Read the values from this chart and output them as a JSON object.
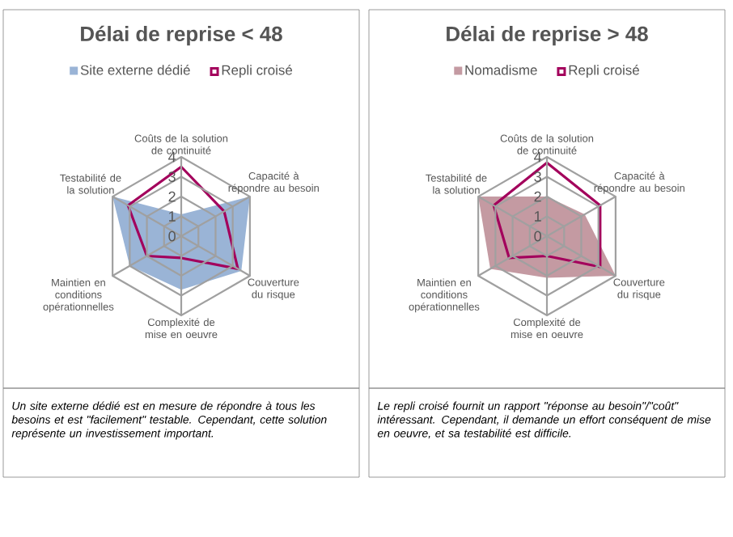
{
  "chart_data": [
    {
      "type": "radar",
      "title": "Délai de reprise < 48",
      "categories": [
        "Coûts de la solution de continuité",
        "Capacité à répondre au besoin",
        "Couverture du risque",
        "Complexité de mise en oeuvre",
        "Maintien en conditions opérationnelles",
        "Testabilité de la solution"
      ],
      "ylim": [
        0,
        4
      ],
      "yticks": [
        0,
        1,
        2,
        3,
        4
      ],
      "grid": true,
      "legend": "top",
      "series": [
        {
          "name": "Site externe dédié",
          "type": "area",
          "color": "#9ab4d6",
          "values": [
            1.1,
            4,
            3.5,
            2.7,
            3,
            4
          ]
        },
        {
          "name": "Repli croisé",
          "color": "#a3005c",
          "values": [
            3.5,
            2.5,
            3.3,
            1.1,
            2,
            3.1
          ]
        }
      ],
      "annotations": [
        "Un site externe dédié est en mesure de répondre à tous les besoins et est \"facilement\" testable. Cependant, cette solution représente un investissement important."
      ]
    },
    {
      "type": "radar",
      "title": "Délai de reprise > 48",
      "categories": [
        "Coûts de la solution de continuité",
        "Capacité à répondre au besoin",
        "Couverture du risque",
        "Complexité de mise en oeuvre",
        "Maintien en conditions opérationnelles",
        "Testabilité de la solution"
      ],
      "ylim": [
        0,
        4
      ],
      "yticks": [
        0,
        1,
        2,
        3,
        4
      ],
      "grid": true,
      "legend": "top",
      "series": [
        {
          "name": "Nomadisme",
          "type": "area",
          "color": "#c49aa2",
          "values": [
            2,
            2.2,
            4,
            2.1,
            3.3,
            4
          ]
        },
        {
          "name": "Repli croisé",
          "color": "#a3005c",
          "values": [
            3.7,
            3.1,
            3.1,
            1,
            2.2,
            3.1
          ]
        }
      ],
      "annotations": [
        "Le repli croisé fournit un rapport \"réponse au besoin\"/\"coût\" intéressant. Cependant, il demande un effort conséquent de mise en oeuvre, et sa testabilité est difficile."
      ]
    }
  ]
}
